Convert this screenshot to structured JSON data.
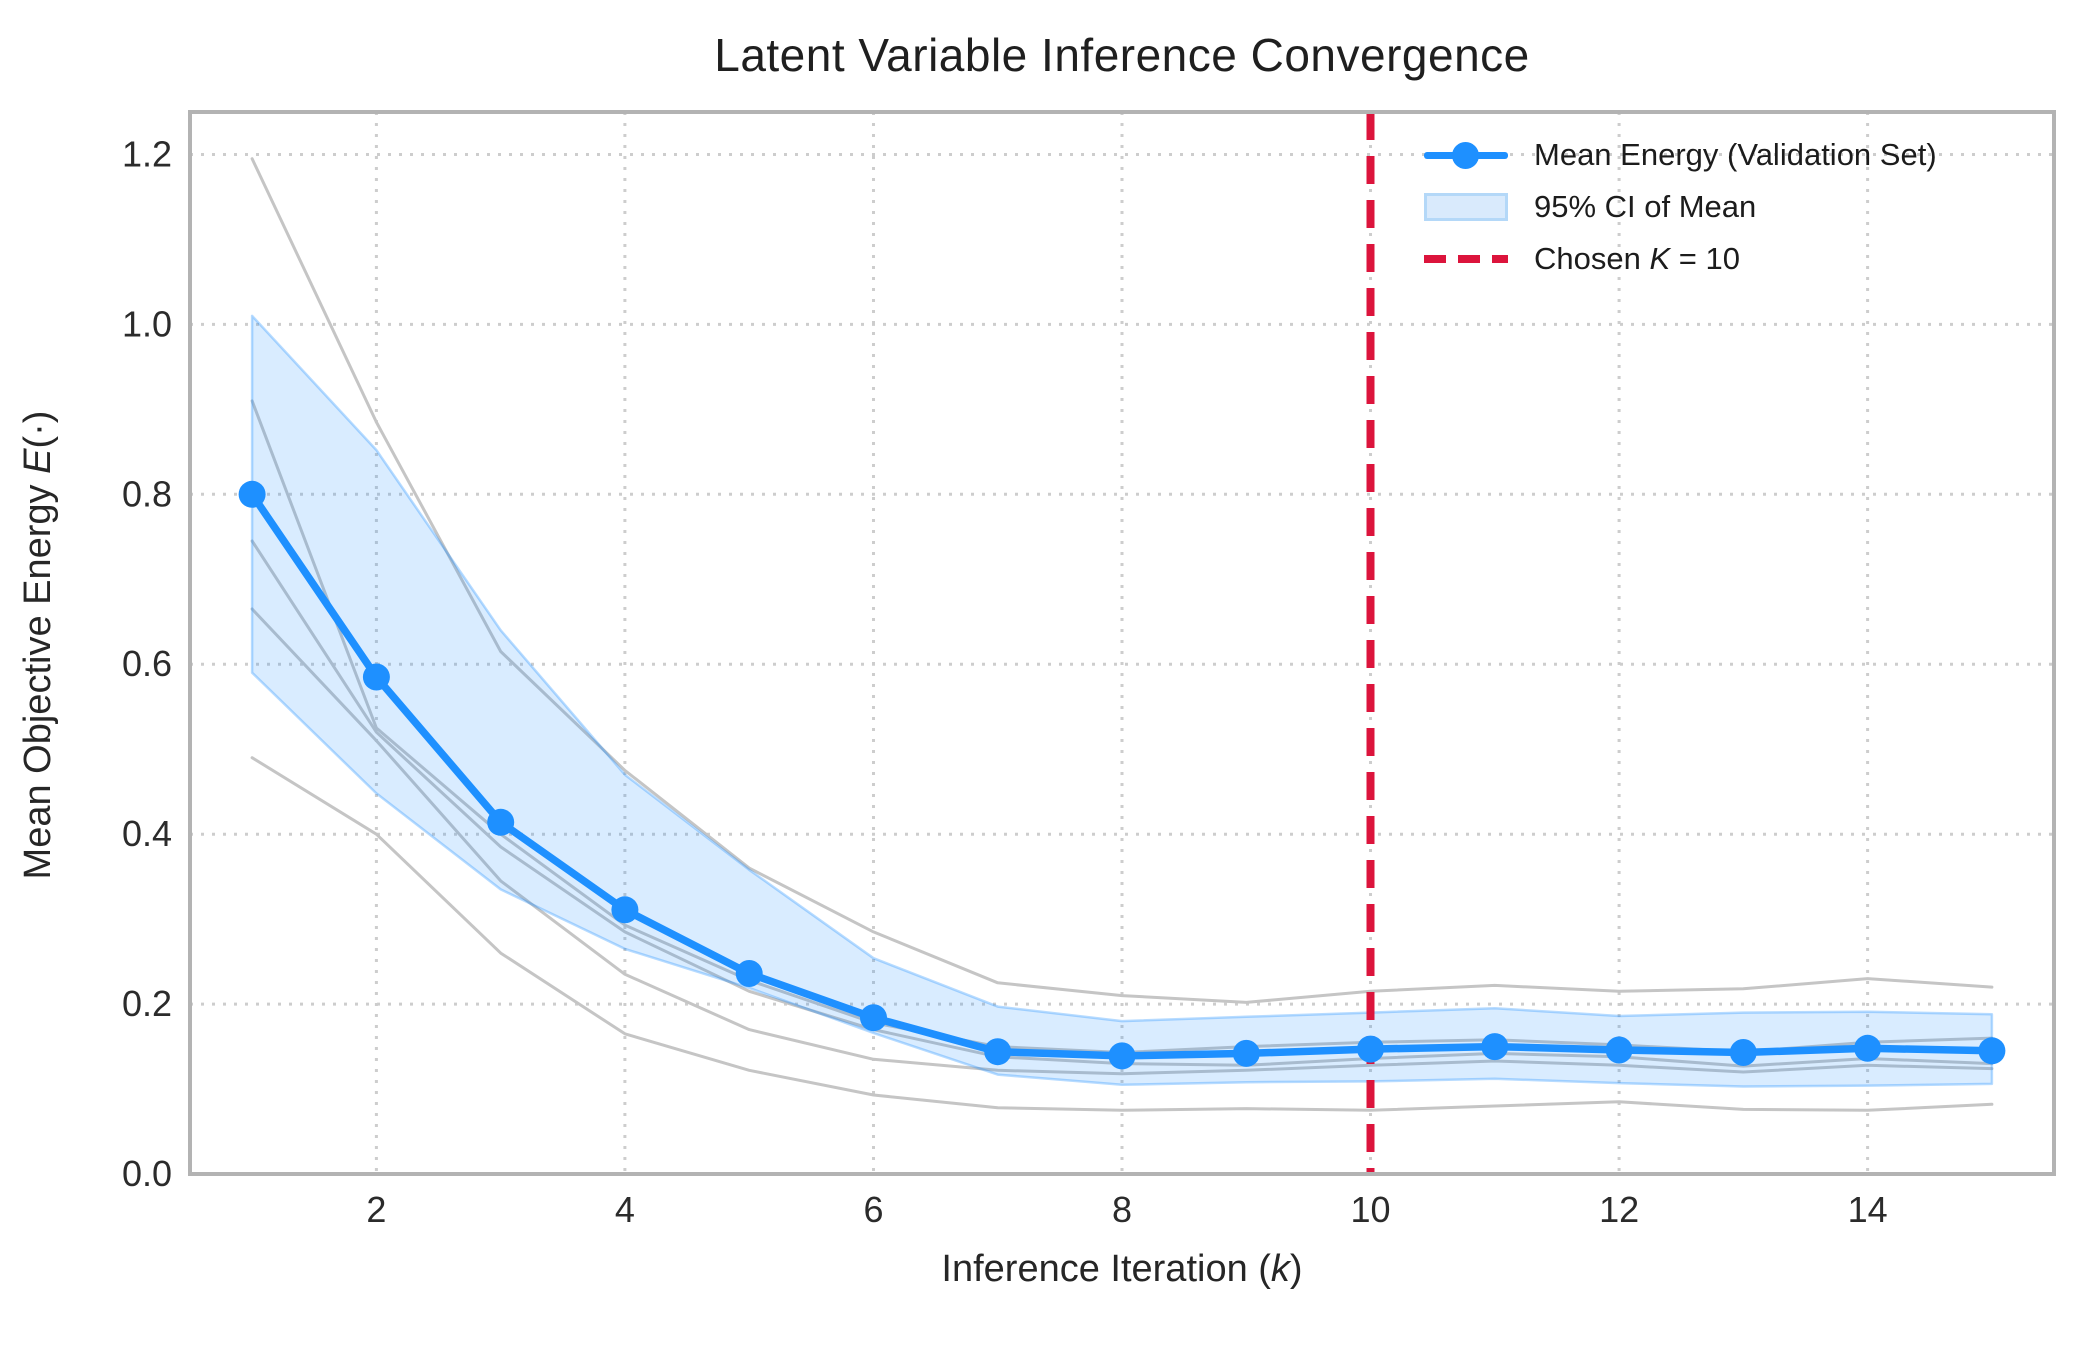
{
  "title": "Latent Variable Inference Convergence",
  "axes": {
    "xlabel": {
      "pre": "Inference Iteration (",
      "italic": "k",
      "post": ")"
    },
    "ylabel": {
      "pre": "Mean Objective Energy ",
      "italic": "E",
      "post": "(·)"
    },
    "x_ticks": [
      {
        "v": 2,
        "label": "2"
      },
      {
        "v": 4,
        "label": "4"
      },
      {
        "v": 6,
        "label": "6"
      },
      {
        "v": 8,
        "label": "8"
      },
      {
        "v": 10,
        "label": "10"
      },
      {
        "v": 12,
        "label": "12"
      },
      {
        "v": 14,
        "label": "14"
      }
    ],
    "y_ticks": [
      {
        "v": 0.0,
        "label": "0.0"
      },
      {
        "v": 0.2,
        "label": "0.2"
      },
      {
        "v": 0.4,
        "label": "0.4"
      },
      {
        "v": 0.6,
        "label": "0.6"
      },
      {
        "v": 0.8,
        "label": "0.8"
      },
      {
        "v": 1.0,
        "label": "1.0"
      },
      {
        "v": 1.2,
        "label": "1.2"
      }
    ],
    "xlim": [
      0.5,
      15.5
    ],
    "ylim": [
      0,
      1.25
    ],
    "grid": "dotted both"
  },
  "legend": {
    "items": [
      {
        "type": "line-marker",
        "label": "Mean Energy (Validation Set)"
      },
      {
        "type": "patch",
        "label": "95% CI of Mean"
      },
      {
        "type": "dashed",
        "label_pre": "Chosen ",
        "label_italic": "K",
        "label_post": " = 10"
      }
    ],
    "position": "upper right",
    "frame": false
  },
  "colors": {
    "mean_line": "#1E90FF",
    "ci_fill": "rgba(30,144,255,0.17)",
    "ci_edge": "rgba(30,144,255,0.32)",
    "vline": "#DC143C",
    "trace_gray": "#c5c5c5",
    "grid": "#cdcdcd",
    "spine": "#b3b3b3",
    "tick_text": "#2b2b2b",
    "background": "#ffffff"
  },
  "chart_data": {
    "type": "line",
    "title": "Latent Variable Inference Convergence",
    "xlabel": "Inference Iteration (k)",
    "ylabel": "Mean Objective Energy E(·)",
    "x": [
      1,
      2,
      3,
      4,
      5,
      6,
      7,
      8,
      9,
      10,
      11,
      12,
      13,
      14,
      15
    ],
    "xlim": [
      0.5,
      15.5
    ],
    "ylim": [
      0,
      1.25
    ],
    "series": [
      {
        "name": "Mean Energy (Validation Set)",
        "role": "mean",
        "values": [
          0.8,
          0.585,
          0.414,
          0.311,
          0.236,
          0.184,
          0.144,
          0.139,
          0.142,
          0.147,
          0.15,
          0.146,
          0.143,
          0.148,
          0.145
        ]
      },
      {
        "name": "95% CI lower",
        "role": "ci_lower",
        "values": [
          0.59,
          0.448,
          0.335,
          0.265,
          0.219,
          0.166,
          0.117,
          0.105,
          0.108,
          0.109,
          0.112,
          0.107,
          0.103,
          0.104,
          0.106
        ]
      },
      {
        "name": "95% CI upper",
        "role": "ci_upper",
        "values": [
          1.01,
          0.852,
          0.64,
          0.47,
          0.358,
          0.254,
          0.197,
          0.18,
          0.185,
          0.19,
          0.195,
          0.186,
          0.19,
          0.191,
          0.188
        ]
      },
      {
        "name": "individual run 1",
        "role": "trace",
        "values": [
          1.195,
          0.885,
          0.615,
          0.475,
          0.36,
          0.285,
          0.225,
          0.21,
          0.202,
          0.215,
          0.222,
          0.215,
          0.218,
          0.23,
          0.22
        ]
      },
      {
        "name": "individual run 2",
        "role": "trace",
        "values": [
          0.91,
          0.525,
          0.4,
          0.293,
          0.228,
          0.178,
          0.15,
          0.143,
          0.15,
          0.155,
          0.158,
          0.152,
          0.144,
          0.155,
          0.16
        ]
      },
      {
        "name": "individual run 3",
        "role": "trace",
        "values": [
          0.745,
          0.52,
          0.385,
          0.285,
          0.215,
          0.17,
          0.138,
          0.13,
          0.128,
          0.136,
          0.142,
          0.138,
          0.127,
          0.136,
          0.13
        ]
      },
      {
        "name": "individual run 4",
        "role": "trace",
        "values": [
          0.665,
          0.51,
          0.345,
          0.235,
          0.17,
          0.135,
          0.122,
          0.118,
          0.122,
          0.128,
          0.133,
          0.128,
          0.12,
          0.128,
          0.124
        ]
      },
      {
        "name": "individual run 5",
        "role": "trace",
        "values": [
          0.49,
          0.4,
          0.26,
          0.165,
          0.122,
          0.093,
          0.078,
          0.075,
          0.077,
          0.075,
          0.08,
          0.085,
          0.076,
          0.075,
          0.082
        ]
      }
    ],
    "vline": {
      "x": 10,
      "label": "Chosen K = 10",
      "style": "dashed"
    }
  }
}
